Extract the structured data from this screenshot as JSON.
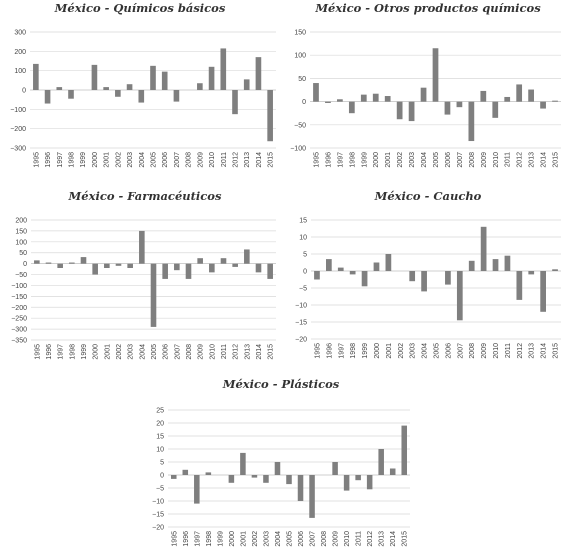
{
  "chart_data": [
    {
      "type": "bar",
      "title": "México - Químicos básicos",
      "categories": [
        "1995",
        "1996",
        "1997",
        "1998",
        "1999",
        "2000",
        "2001",
        "2002",
        "2003",
        "2004",
        "2005",
        "2006",
        "2007",
        "2008",
        "2009",
        "2010",
        "2011",
        "2012",
        "2013",
        "2014",
        "2015"
      ],
      "values": [
        135,
        -70,
        15,
        -45,
        0,
        130,
        15,
        -35,
        30,
        -65,
        125,
        95,
        -60,
        0,
        35,
        120,
        215,
        -125,
        55,
        170,
        -265
      ],
      "ylim": [
        -300,
        300
      ],
      "yticks": [
        300,
        200,
        100,
        0,
        -100,
        -200,
        -300
      ],
      "ytick_labels": [
        "300",
        "200",
        "100",
        "0",
        "−100",
        "−200",
        "−300"
      ],
      "xlabel": "",
      "ylabel": "",
      "grid": true,
      "legend": "none",
      "bar_color": "#7f7f7f"
    },
    {
      "type": "bar",
      "title": "México - Otros productos químicos",
      "categories": [
        "1995",
        "1996",
        "1997",
        "1998",
        "1999",
        "2000",
        "2001",
        "2002",
        "2003",
        "2004",
        "2005",
        "2006",
        "2007",
        "2008",
        "2009",
        "2010",
        "2011",
        "2012",
        "2013",
        "2014",
        "2015"
      ],
      "values": [
        40,
        -3,
        5,
        -25,
        15,
        17,
        12,
        -38,
        -42,
        30,
        115,
        -28,
        -12,
        -85,
        23,
        -35,
        10,
        37,
        26,
        -15,
        2
      ],
      "ylim": [
        -100,
        150
      ],
      "yticks": [
        150,
        100,
        50,
        0,
        -50,
        -100
      ],
      "ytick_labels": [
        "150",
        "100",
        "50",
        "0",
        "−50",
        "−100"
      ],
      "xlabel": "",
      "ylabel": "",
      "grid": true,
      "legend": "none",
      "bar_color": "#7f7f7f"
    },
    {
      "type": "bar",
      "title": "México - Farmacéuticos",
      "categories": [
        "1995",
        "1996",
        "1997",
        "1998",
        "1999",
        "2000",
        "2001",
        "2002",
        "2003",
        "2004",
        "2005",
        "2006",
        "2007",
        "2008",
        "2009",
        "2010",
        "2011",
        "2012",
        "2013",
        "2014",
        "2015"
      ],
      "values": [
        15,
        5,
        -20,
        5,
        30,
        -50,
        -20,
        -10,
        -20,
        150,
        -290,
        -70,
        -30,
        -70,
        25,
        -40,
        25,
        -15,
        65,
        -40,
        -70
      ],
      "ylim": [
        -350,
        200
      ],
      "yticks": [
        200,
        150,
        100,
        50,
        0,
        -50,
        -100,
        -150,
        -200,
        -250,
        -300,
        -350
      ],
      "ytick_labels": [
        "200",
        "150",
        "100",
        "50",
        "0",
        "−50",
        "−100",
        "−150",
        "−200",
        "−250",
        "−300",
        "−350"
      ],
      "xlabel": "",
      "ylabel": "",
      "grid": true,
      "legend": "none",
      "bar_color": "#7f7f7f"
    },
    {
      "type": "bar",
      "title": "México - Caucho",
      "categories": [
        "1995",
        "1996",
        "1997",
        "1998",
        "1999",
        "2000",
        "2001",
        "2002",
        "2003",
        "2004",
        "2005",
        "2006",
        "2007",
        "2008",
        "2009",
        "2010",
        "2011",
        "2012",
        "2013",
        "2014",
        "2015"
      ],
      "values": [
        -2.5,
        3.5,
        1,
        -1,
        -4.5,
        2.5,
        5,
        0,
        -3,
        -6,
        0,
        -4,
        -14.5,
        3,
        13,
        3.5,
        4.5,
        -8.5,
        -1,
        -12,
        0.5
      ],
      "ylim": [
        -20,
        15
      ],
      "yticks": [
        15,
        10,
        5,
        0,
        -5,
        -10,
        -15,
        -20
      ],
      "ytick_labels": [
        "15",
        "10",
        "5",
        "0",
        "−5",
        "−10",
        "−15",
        "−20"
      ],
      "xlabel": "",
      "ylabel": "",
      "grid": true,
      "legend": "none",
      "bar_color": "#7f7f7f"
    },
    {
      "type": "bar",
      "title": "México - Plásticos",
      "categories": [
        "1995",
        "1996",
        "1997",
        "1998",
        "1999",
        "2000",
        "2001",
        "2002",
        "2003",
        "2004",
        "2005",
        "2006",
        "2007",
        "2008",
        "2009",
        "2010",
        "2011",
        "2012",
        "2013",
        "2014",
        "2015"
      ],
      "values": [
        -1.5,
        2,
        -11,
        1,
        0,
        -3,
        8.5,
        -1,
        -3,
        5,
        -3.5,
        -10,
        -16.5,
        0,
        5,
        -6,
        -2,
        -5.5,
        10,
        2.5,
        19
      ],
      "ylim": [
        -20,
        25
      ],
      "yticks": [
        25,
        20,
        15,
        10,
        5,
        0,
        -5,
        -10,
        -15,
        -20
      ],
      "ytick_labels": [
        "25",
        "20",
        "15",
        "10",
        "5",
        "0",
        "−5",
        "−10",
        "−15",
        "−20"
      ],
      "xlabel": "",
      "ylabel": "",
      "grid": true,
      "legend": "none",
      "bar_color": "#7f7f7f"
    }
  ]
}
